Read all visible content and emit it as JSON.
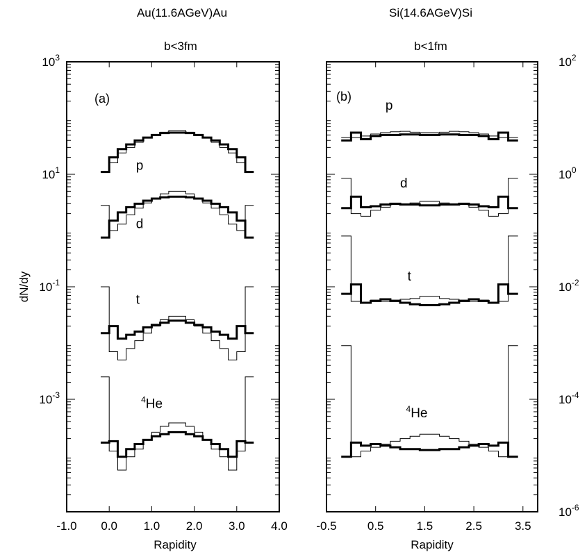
{
  "chart_data": [
    {
      "type": "line",
      "panel_label": "(a)",
      "system": "Au(11.6AGeV)Au",
      "centrality": "b<3fm",
      "xlabel": "Rapidity",
      "ylabel": "dN/dy",
      "y_scale": "log",
      "xlim": [
        -1.0,
        4.0
      ],
      "ylim": [
        1e-05,
        1000
      ],
      "x_ticks": [
        "-1.0",
        "0.0",
        "1.0",
        "2.0",
        "3.0",
        "4.0"
      ],
      "x_tick_values": [
        -1.0,
        0.0,
        1.0,
        2.0,
        3.0,
        4.0
      ],
      "y_ticks": [
        {
          "base": "10",
          "exp": "3",
          "value": 1000
        },
        {
          "base": "10",
          "exp": "1",
          "value": 10
        },
        {
          "base": "10",
          "exp": "-1",
          "value": 0.1
        },
        {
          "base": "10",
          "exp": "-3",
          "value": 0.001
        }
      ],
      "x_edges": [
        -0.2,
        0.0,
        0.2,
        0.4,
        0.6,
        0.8,
        1.0,
        1.2,
        1.4,
        1.6,
        1.8,
        2.0,
        2.2,
        2.4,
        2.6,
        2.8,
        3.0,
        3.2
      ],
      "series": [
        {
          "name": "p",
          "label_x": 0.63,
          "label_y": 12,
          "thick": [
            11,
            20,
            28,
            34,
            40,
            45,
            50,
            54,
            55,
            55,
            54,
            50,
            45,
            40,
            34,
            28,
            20,
            11
          ],
          "thin": [
            11,
            16,
            24,
            30,
            37,
            44,
            50,
            56,
            60,
            60,
            56,
            50,
            44,
            37,
            30,
            24,
            16,
            11
          ]
        },
        {
          "name": "d",
          "label_x": 0.63,
          "label_y": 1.1,
          "thick": [
            0.75,
            1.5,
            2.1,
            2.6,
            3.0,
            3.4,
            3.7,
            3.9,
            4.0,
            4.0,
            3.9,
            3.7,
            3.4,
            3.0,
            2.6,
            2.1,
            1.5,
            0.75
          ],
          "thin": [
            2.8,
            1.0,
            1.3,
            1.9,
            2.5,
            3.1,
            3.8,
            4.5,
            5.0,
            5.0,
            4.5,
            3.8,
            3.1,
            2.5,
            1.9,
            1.3,
            1.0,
            2.8
          ]
        },
        {
          "name": "t",
          "label_x": 0.63,
          "label_y": 0.05,
          "thick": [
            0.015,
            0.02,
            0.012,
            0.014,
            0.016,
            0.019,
            0.021,
            0.023,
            0.025,
            0.025,
            0.023,
            0.021,
            0.019,
            0.016,
            0.014,
            0.012,
            0.02,
            0.015
          ],
          "thin": [
            0.1,
            0.007,
            0.005,
            0.008,
            0.011,
            0.015,
            0.02,
            0.026,
            0.03,
            0.03,
            0.026,
            0.02,
            0.015,
            0.011,
            0.008,
            0.005,
            0.007,
            0.1
          ]
        },
        {
          "name": "4He",
          "label_prefix": "4",
          "label_text": "He",
          "label_x": 0.75,
          "label_y": 0.0007,
          "thick": [
            0.00017,
            0.00018,
            9.5e-05,
            0.00013,
            0.00016,
            0.00019,
            0.00022,
            0.00024,
            0.00026,
            0.00026,
            0.00024,
            0.00022,
            0.00019,
            0.00016,
            0.00013,
            9.5e-05,
            0.00018,
            0.00017
          ],
          "thin": [
            0.0025,
            0.00012,
            5.5e-05,
            9.5e-05,
            0.00013,
            0.00019,
            0.00026,
            0.00033,
            0.00038,
            0.00038,
            0.00033,
            0.00026,
            0.00019,
            0.00013,
            9.5e-05,
            5.5e-05,
            0.00012,
            0.0025
          ]
        }
      ]
    },
    {
      "type": "line",
      "panel_label": "(b)",
      "system": "Si(14.6AGeV)Si",
      "centrality": "b<1fm",
      "xlabel": "Rapidity",
      "y_scale": "log",
      "xlim": [
        -0.5,
        3.8
      ],
      "ylim": [
        1e-06,
        100
      ],
      "x_ticks": [
        "-0.5",
        "0.5",
        "1.5",
        "2.5",
        "3.5"
      ],
      "x_tick_values": [
        -0.5,
        0.5,
        1.5,
        2.5,
        3.5
      ],
      "y_ticks": [
        {
          "base": "10",
          "exp": "2",
          "value": 100
        },
        {
          "base": "10",
          "exp": "0",
          "value": 1
        },
        {
          "base": "10",
          "exp": "-2",
          "value": 0.01
        },
        {
          "base": "10",
          "exp": "-4",
          "value": 0.0001
        },
        {
          "base": "10",
          "exp": "-6",
          "value": 1e-06
        }
      ],
      "x_edges": [
        -0.2,
        0.0,
        0.2,
        0.4,
        0.6,
        0.8,
        1.0,
        1.2,
        1.4,
        1.6,
        1.8,
        2.0,
        2.2,
        2.4,
        2.6,
        2.8,
        3.0,
        3.2,
        3.4
      ],
      "series": [
        {
          "name": "p",
          "label_x": 0.7,
          "label_y": 14,
          "thick": [
            4.0,
            5.5,
            4.2,
            4.8,
            5.0,
            5.0,
            5.1,
            5.1,
            5.0,
            5.0,
            5.1,
            5.1,
            5.0,
            5.0,
            4.8,
            4.2,
            5.5,
            4.0
          ],
          "thin": [
            4.5,
            4.5,
            4.8,
            5.2,
            5.5,
            5.7,
            5.8,
            5.6,
            5.5,
            5.5,
            5.6,
            5.8,
            5.7,
            5.5,
            5.2,
            4.8,
            4.5,
            4.5
          ]
        },
        {
          "name": "d",
          "label_x": 1.0,
          "label_y": 0.58,
          "thick": [
            0.25,
            0.4,
            0.26,
            0.27,
            0.29,
            0.3,
            0.29,
            0.29,
            0.28,
            0.28,
            0.29,
            0.29,
            0.3,
            0.29,
            0.27,
            0.26,
            0.4,
            0.25
          ],
          "thin": [
            0.85,
            0.2,
            0.18,
            0.23,
            0.26,
            0.29,
            0.3,
            0.31,
            0.33,
            0.33,
            0.31,
            0.3,
            0.29,
            0.26,
            0.23,
            0.18,
            0.2,
            0.85
          ]
        },
        {
          "name": "t",
          "label_x": 1.15,
          "label_y": 0.013,
          "thick": [
            0.0075,
            0.011,
            0.0052,
            0.0056,
            0.006,
            0.0056,
            0.0052,
            0.0049,
            0.0047,
            0.0047,
            0.0049,
            0.0052,
            0.0056,
            0.006,
            0.0056,
            0.0052,
            0.011,
            0.0075
          ],
          "thin": [
            0.08,
            0.0055,
            0.0052,
            0.0058,
            0.0055,
            0.0058,
            0.006,
            0.0062,
            0.0068,
            0.0068,
            0.0062,
            0.006,
            0.0058,
            0.0055,
            0.0058,
            0.0052,
            0.0055,
            0.08
          ]
        },
        {
          "name": "4He",
          "label_prefix": "4",
          "label_text": "He",
          "label_x": 1.12,
          "label_y": 4.8e-05,
          "thick": [
            9.5e-06,
            1.7e-05,
            1.5e-05,
            1.6e-05,
            1.5e-05,
            1.4e-05,
            1.3e-05,
            1.3e-05,
            1.25e-05,
            1.25e-05,
            1.3e-05,
            1.3e-05,
            1.4e-05,
            1.5e-05,
            1.6e-05,
            1.5e-05,
            1.7e-05,
            9.5e-06
          ],
          "thin": [
            0.0009,
            9.5e-06,
            1.2e-05,
            1.4e-05,
            1.6e-05,
            1.8e-05,
            2e-05,
            2.2e-05,
            2.4e-05,
            2.4e-05,
            2.2e-05,
            2e-05,
            1.8e-05,
            1.6e-05,
            1.4e-05,
            1.2e-05,
            9.5e-06,
            0.0009
          ]
        }
      ]
    }
  ]
}
